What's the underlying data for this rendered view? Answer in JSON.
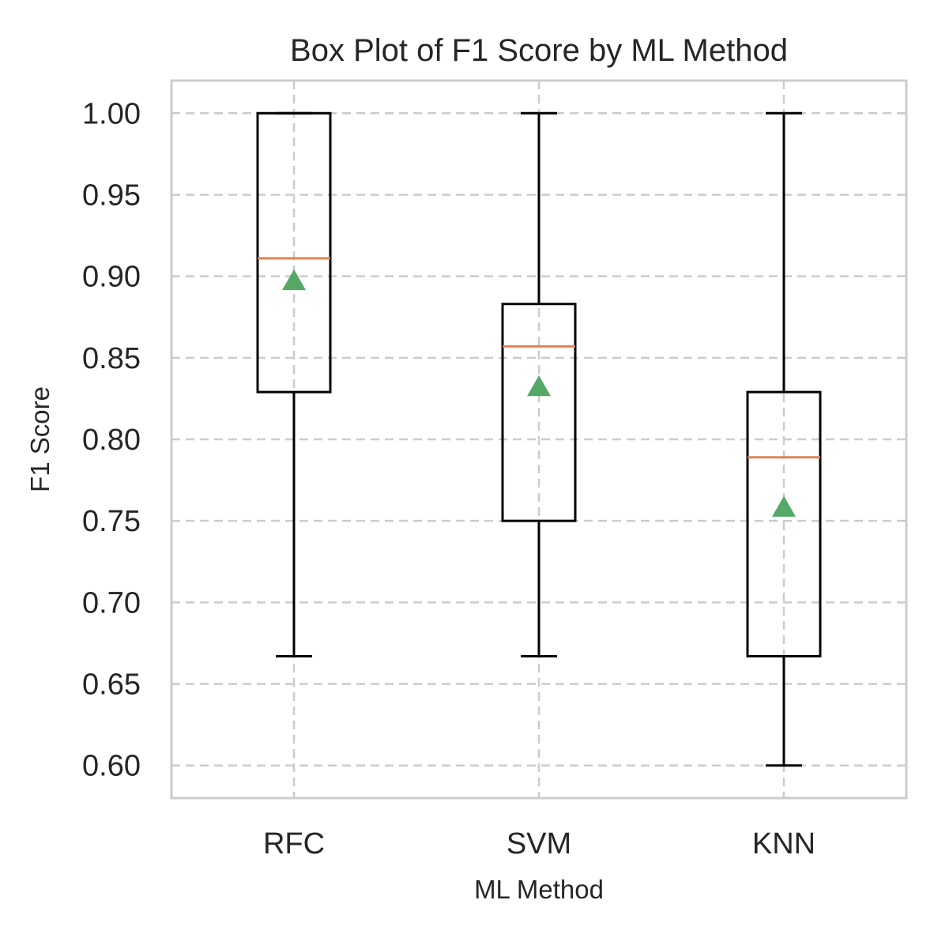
{
  "chart_data": {
    "type": "box",
    "title": "Box Plot of F1 Score by ML Method",
    "xlabel": "ML Method",
    "ylabel": "F1 Score",
    "ylim": [
      0.58,
      1.02
    ],
    "yticks": [
      "0.60",
      "0.65",
      "0.70",
      "0.75",
      "0.80",
      "0.85",
      "0.90",
      "0.95",
      "1.00"
    ],
    "grid": true,
    "colors": {
      "box": "#000000",
      "median": "#dd8452",
      "mean": "#55a868",
      "grid": "#cccccc",
      "frame": "#cccccc"
    },
    "categories": [
      "RFC",
      "SVM",
      "KNN"
    ],
    "boxes": [
      {
        "label": "RFC",
        "whisker_low": 0.667,
        "q1": 0.829,
        "median": 0.911,
        "q3": 1.0,
        "whisker_high": 1.0,
        "mean": 0.897
      },
      {
        "label": "SVM",
        "whisker_low": 0.667,
        "q1": 0.75,
        "median": 0.857,
        "q3": 0.883,
        "whisker_high": 1.0,
        "mean": 0.832
      },
      {
        "label": "KNN",
        "whisker_low": 0.6,
        "q1": 0.667,
        "median": 0.789,
        "q3": 0.829,
        "whisker_high": 1.0,
        "mean": 0.758
      }
    ]
  }
}
